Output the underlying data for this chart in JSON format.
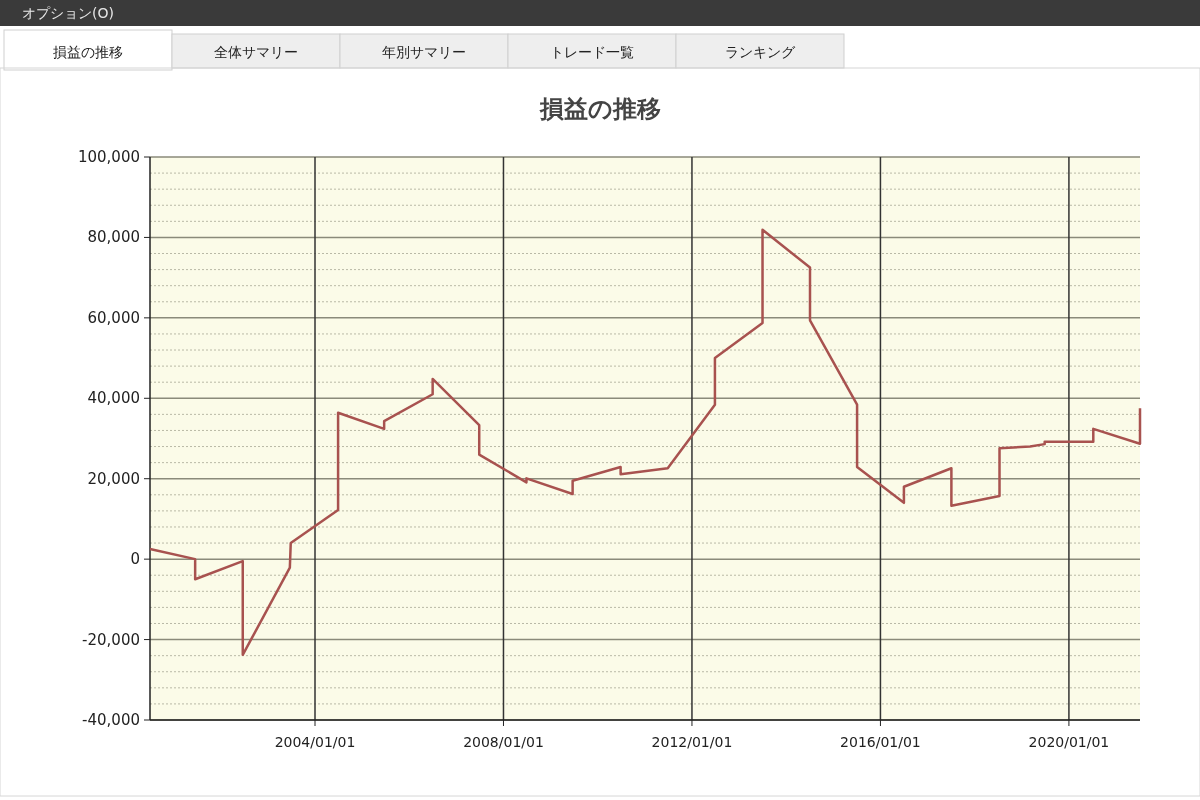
{
  "chart_data": {
    "type": "line",
    "title": "損益の推移",
    "annotations": [
      "オプション(O)",
      "損益の推移",
      "全体サマリー",
      "年別サマリー",
      "トレード一覧",
      "ランキング"
    ],
    "x": [
      "2000-07-01",
      "2001-06-16",
      "2001-06-16",
      "2002-06-20",
      "2002-06-20",
      "2003-06-20",
      "2003-06-27",
      "2004-06-28",
      "2004-06-28",
      "2005-06-20",
      "2005-06-20",
      "2006-07-01",
      "2006-07-01",
      "2007-06-27",
      "2007-06-27",
      "2008-06-27",
      "2008-06-27",
      "2009-06-20",
      "2009-06-20",
      "2010-06-27",
      "2010-06-27",
      "2011-06-27",
      "2012-06-27",
      "2012-06-27",
      "2013-07-01",
      "2013-07-01",
      "2014-07-04",
      "2014-07-04",
      "2015-07-04",
      "2015-07-04",
      "2016-07-01",
      "2016-07-01",
      "2017-07-04",
      "2017-07-04",
      "2018-07-12",
      "2018-07-12",
      "2019-03-06",
      "2019-06-27",
      "2019-06-27",
      "2020-07-08",
      "2020-07-08",
      "2021-07-05",
      "2021-07-05"
    ],
    "series": [
      {
        "color": "#a8524f",
        "values": [
          2500,
          0,
          -5000,
          -500,
          -23800,
          -2100,
          4000,
          12200,
          36400,
          32400,
          34300,
          41000,
          44800,
          33300,
          26000,
          19100,
          20100,
          16200,
          19500,
          22900,
          21100,
          22600,
          38400,
          50000,
          58700,
          81900,
          72500,
          59400,
          38400,
          22900,
          14000,
          18000,
          22600,
          13300,
          15700,
          27600,
          28000,
          28600,
          29200,
          29200,
          32400,
          28700,
          37500
        ]
      }
    ],
    "xlim": [
      "2000-07-01",
      "2021-07-05"
    ],
    "xticks": [
      {
        "value": "2004-01-01",
        "label": "2004/01/01"
      },
      {
        "value": "2008-01-01",
        "label": "2008/01/01"
      },
      {
        "value": "2012-01-01",
        "label": "2012/01/01"
      },
      {
        "value": "2016-01-01",
        "label": "2016/01/01"
      },
      {
        "value": "2020-01-01",
        "label": "2020/01/01"
      }
    ],
    "ylim": [
      -40000,
      100000
    ],
    "yticks": [
      {
        "value": -40000,
        "label": "-40,000"
      },
      {
        "value": -36000,
        "label": null
      },
      {
        "value": -32000,
        "label": null
      },
      {
        "value": -28000,
        "label": null
      },
      {
        "value": -24000,
        "label": null
      },
      {
        "value": -20000,
        "label": "-20,000"
      },
      {
        "value": -16000,
        "label": null
      },
      {
        "value": -12000,
        "label": null
      },
      {
        "value": -8000,
        "label": null
      },
      {
        "value": -4000,
        "label": null
      },
      0,
      {
        "value": 4000,
        "label": null
      },
      {
        "value": 8000,
        "label": null
      },
      {
        "value": 12000,
        "label": null
      },
      {
        "value": 16000,
        "label": null
      },
      {
        "value": 20000,
        "label": "20,000"
      },
      {
        "value": 24000,
        "label": null
      },
      {
        "value": 28000,
        "label": null
      },
      {
        "value": 32000,
        "label": null
      },
      {
        "value": 36000,
        "label": null
      },
      {
        "value": 40000,
        "label": "40,000"
      },
      {
        "value": 44000,
        "label": null
      },
      {
        "value": 48000,
        "label": null
      },
      {
        "value": 52000,
        "label": null
      },
      {
        "value": 56000,
        "label": null
      },
      {
        "value": 60000,
        "label": "60,000"
      },
      {
        "value": 64000,
        "label": null
      },
      {
        "value": 68000,
        "label": null
      },
      {
        "value": 72000,
        "label": null
      },
      {
        "value": 76000,
        "label": null
      },
      {
        "value": 80000,
        "label": "80,000"
      },
      {
        "value": 84000,
        "label": null
      },
      {
        "value": 88000,
        "label": null
      },
      {
        "value": 92000,
        "label": null
      },
      {
        "value": 96000,
        "label": null
      },
      {
        "value": 100000,
        "label": "100,000"
      }
    ],
    "grid": true,
    "marker": "none",
    "line_style": "solid"
  }
}
